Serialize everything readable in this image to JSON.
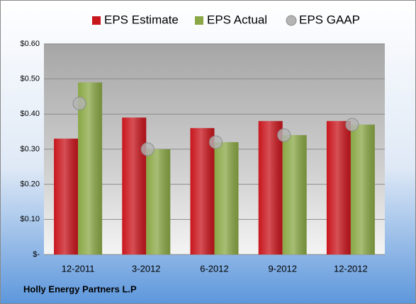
{
  "chart_data": {
    "type": "bar",
    "footer": "Holly Energy Partners L.P",
    "categories": [
      "12-2011",
      "3-2012",
      "6-2012",
      "9-2012",
      "12-2012"
    ],
    "series": [
      {
        "name": "EPS Estimate",
        "color": "#c8161d",
        "type": "bar",
        "values": [
          0.33,
          0.39,
          0.36,
          0.38,
          0.38
        ]
      },
      {
        "name": "EPS Actual",
        "color": "#8aa846",
        "type": "bar",
        "values": [
          0.49,
          0.3,
          0.32,
          0.34,
          0.37
        ]
      },
      {
        "name": "EPS GAAP",
        "color": "#b4b4b4",
        "type": "scatter",
        "values": [
          0.43,
          0.3,
          0.32,
          0.34,
          0.37
        ]
      }
    ],
    "ylim": [
      0,
      0.6
    ],
    "yticks": [
      {
        "value": 0,
        "label": "$-"
      },
      {
        "value": 0.1,
        "label": "$0.10"
      },
      {
        "value": 0.2,
        "label": "$0.20"
      },
      {
        "value": 0.3,
        "label": "$0.30"
      },
      {
        "value": 0.4,
        "label": "$0.40"
      },
      {
        "value": 0.5,
        "label": "$0.50"
      },
      {
        "value": 0.6,
        "label": "$0.60"
      }
    ],
    "grid": true,
    "legend": "top"
  }
}
